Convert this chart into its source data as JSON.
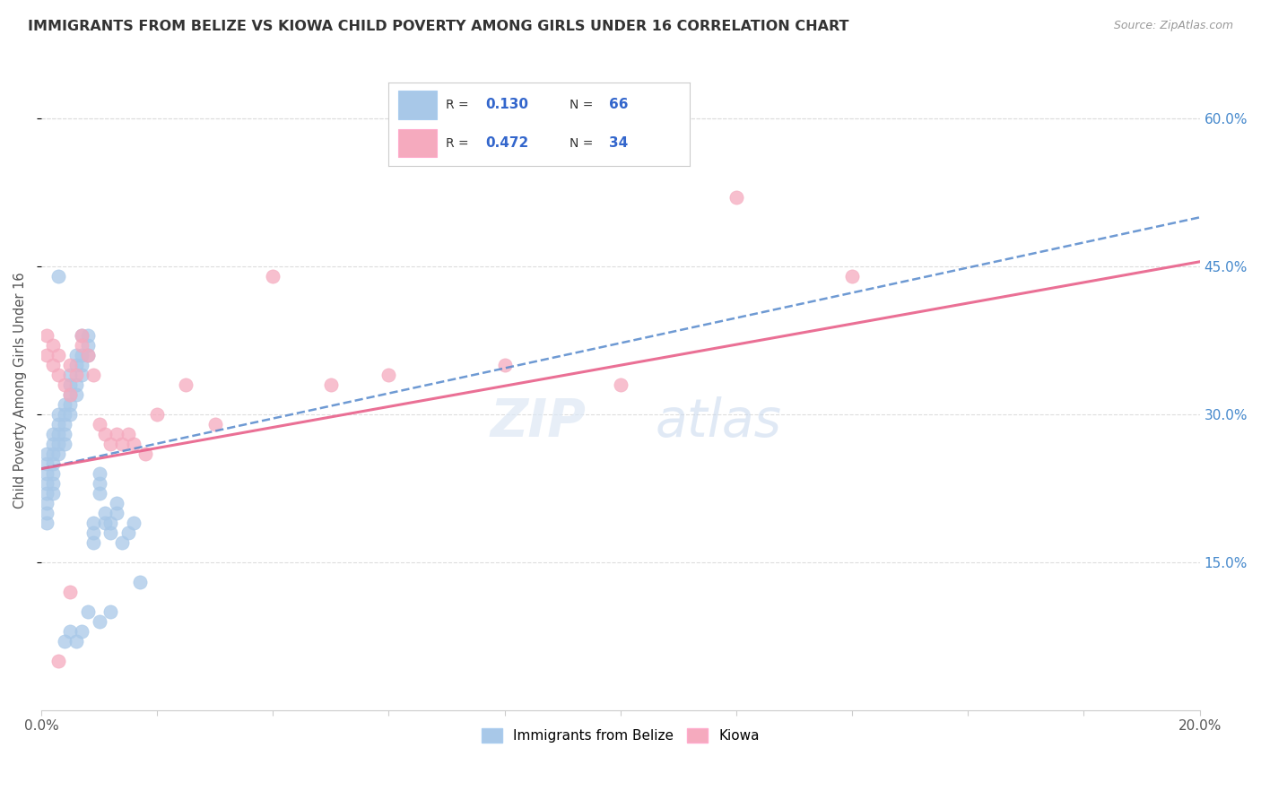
{
  "title": "IMMIGRANTS FROM BELIZE VS KIOWA CHILD POVERTY AMONG GIRLS UNDER 16 CORRELATION CHART",
  "source": "Source: ZipAtlas.com",
  "ylabel": "Child Poverty Among Girls Under 16",
  "xlim": [
    0.0,
    0.2
  ],
  "ylim": [
    0.0,
    0.65
  ],
  "xtick_positions": [
    0.0,
    0.02,
    0.04,
    0.06,
    0.08,
    0.1,
    0.12,
    0.14,
    0.16,
    0.18,
    0.2
  ],
  "xtick_labels": [
    "0.0%",
    "",
    "",
    "",
    "",
    "",
    "",
    "",
    "",
    "",
    "20.0%"
  ],
  "ytick_vals": [
    0.15,
    0.3,
    0.45,
    0.6
  ],
  "ytick_labels": [
    "15.0%",
    "30.0%",
    "45.0%",
    "60.0%"
  ],
  "belize_color": "#a8c8e8",
  "kiowa_color": "#f5aabe",
  "belize_line_color": "#5588cc",
  "kiowa_line_color": "#e8608a",
  "legend_label_belize": "Immigrants from Belize",
  "legend_label_kiowa": "Kiowa",
  "belize_line_x0": 0.0,
  "belize_line_y0": 0.245,
  "belize_line_x1": 0.2,
  "belize_line_y1": 0.5,
  "kiowa_line_x0": 0.0,
  "kiowa_line_y0": 0.245,
  "kiowa_line_x1": 0.2,
  "kiowa_line_y1": 0.455,
  "belize_x": [
    0.001,
    0.001,
    0.001,
    0.001,
    0.001,
    0.001,
    0.001,
    0.001,
    0.002,
    0.002,
    0.002,
    0.002,
    0.002,
    0.002,
    0.002,
    0.003,
    0.003,
    0.003,
    0.003,
    0.003,
    0.003,
    0.004,
    0.004,
    0.004,
    0.004,
    0.004,
    0.005,
    0.005,
    0.005,
    0.005,
    0.005,
    0.006,
    0.006,
    0.006,
    0.006,
    0.007,
    0.007,
    0.007,
    0.007,
    0.008,
    0.008,
    0.008,
    0.009,
    0.009,
    0.009,
    0.01,
    0.01,
    0.01,
    0.011,
    0.011,
    0.012,
    0.012,
    0.013,
    0.013,
    0.014,
    0.015,
    0.016,
    0.017,
    0.008,
    0.01,
    0.012,
    0.004,
    0.005,
    0.006,
    0.007
  ],
  "belize_y": [
    0.21,
    0.22,
    0.23,
    0.24,
    0.25,
    0.26,
    0.19,
    0.2,
    0.26,
    0.27,
    0.28,
    0.25,
    0.24,
    0.22,
    0.23,
    0.29,
    0.3,
    0.28,
    0.26,
    0.27,
    0.44,
    0.3,
    0.31,
    0.29,
    0.28,
    0.27,
    0.32,
    0.33,
    0.31,
    0.3,
    0.34,
    0.35,
    0.33,
    0.32,
    0.36,
    0.38,
    0.36,
    0.35,
    0.34,
    0.37,
    0.36,
    0.38,
    0.17,
    0.18,
    0.19,
    0.23,
    0.22,
    0.24,
    0.19,
    0.2,
    0.18,
    0.19,
    0.2,
    0.21,
    0.17,
    0.18,
    0.19,
    0.13,
    0.1,
    0.09,
    0.1,
    0.07,
    0.08,
    0.07,
    0.08
  ],
  "kiowa_x": [
    0.001,
    0.001,
    0.002,
    0.002,
    0.003,
    0.003,
    0.004,
    0.005,
    0.005,
    0.006,
    0.007,
    0.007,
    0.008,
    0.009,
    0.01,
    0.011,
    0.012,
    0.013,
    0.014,
    0.015,
    0.016,
    0.018,
    0.02,
    0.025,
    0.03,
    0.04,
    0.05,
    0.06,
    0.08,
    0.1,
    0.12,
    0.14,
    0.003,
    0.005
  ],
  "kiowa_y": [
    0.38,
    0.36,
    0.37,
    0.35,
    0.36,
    0.34,
    0.33,
    0.35,
    0.32,
    0.34,
    0.38,
    0.37,
    0.36,
    0.34,
    0.29,
    0.28,
    0.27,
    0.28,
    0.27,
    0.28,
    0.27,
    0.26,
    0.3,
    0.33,
    0.29,
    0.44,
    0.33,
    0.34,
    0.35,
    0.33,
    0.52,
    0.44,
    0.05,
    0.12
  ],
  "background_color": "#ffffff",
  "grid_color": "#dddddd",
  "watermark_zip": "ZIP",
  "watermark_atlas": "atlas"
}
